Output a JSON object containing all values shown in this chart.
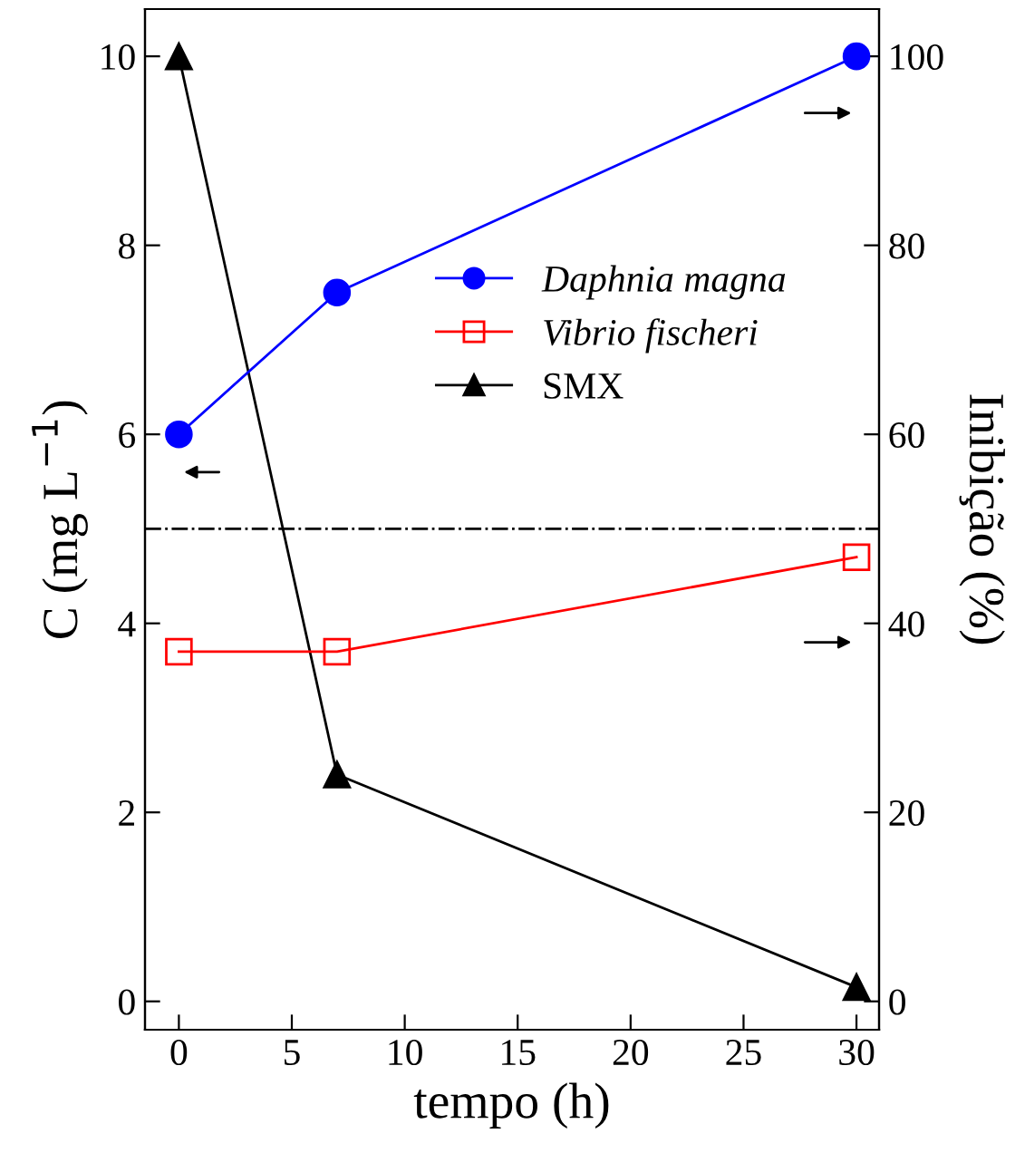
{
  "chart_data": {
    "type": "line",
    "xlabel": "tempo (h)",
    "ylabel": "C (mg L$^{−1}$)",
    "y2label": "Inibição (%)",
    "x": [
      0,
      7,
      30
    ],
    "series": [
      {
        "name": "Daphnia magna",
        "color": "#0000ff",
        "values": [
          60,
          75,
          100
        ],
        "axis": "y2",
        "marker": "circle"
      },
      {
        "name": "Vibrio fischeri",
        "color": "#ff0000",
        "values": [
          37,
          37,
          47
        ],
        "axis": "y2",
        "marker": "square"
      },
      {
        "name": "SMX",
        "color": "#000000",
        "values": [
          10,
          2.4,
          0.15
        ],
        "marker": "triangle"
      }
    ],
    "xlim": [
      -1.5,
      31
    ],
    "xticks": [
      0,
      5,
      10,
      15,
      20,
      25,
      30
    ],
    "ylim": [
      -0.3,
      10.5
    ],
    "yticks": [
      0,
      2,
      4,
      6,
      8,
      10
    ],
    "y2lim": [
      -3,
      105
    ],
    "y2ticks": [
      0,
      20,
      40,
      60,
      80,
      100
    ],
    "ref_lines": [
      {
        "axis": "y",
        "value": 5,
        "color": "#000000",
        "line_style": "dashdot"
      }
    ],
    "legend": "right",
    "grid": false
  }
}
